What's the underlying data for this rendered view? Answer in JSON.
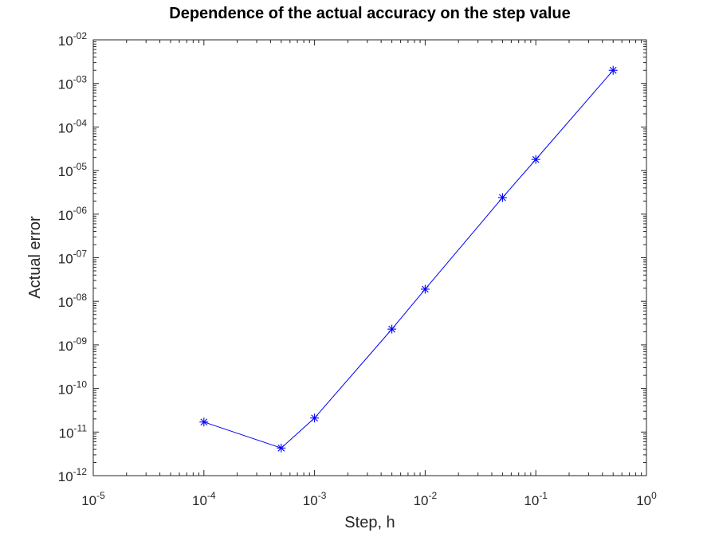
{
  "chart_data": {
    "type": "line",
    "title": "Dependence of the actual accuracy on the step value",
    "xlabel": "Step, h",
    "ylabel": "Actual error",
    "x_scale": "log",
    "y_scale": "log",
    "xlim": [
      1e-05,
      1
    ],
    "ylim": [
      1e-12,
      0.01
    ],
    "x_ticks": [
      {
        "base": "10",
        "exp": "-5",
        "value": 1e-05
      },
      {
        "base": "10",
        "exp": "-4",
        "value": 0.0001
      },
      {
        "base": "10",
        "exp": "-3",
        "value": 0.001
      },
      {
        "base": "10",
        "exp": "-2",
        "value": 0.01
      },
      {
        "base": "10",
        "exp": "-1",
        "value": 0.1
      },
      {
        "base": "10",
        "exp": "0",
        "value": 1
      }
    ],
    "y_ticks": [
      {
        "base": "10",
        "exp": "-12",
        "value": 1e-12
      },
      {
        "base": "10",
        "exp": "-11",
        "value": 1e-11
      },
      {
        "base": "10",
        "exp": "-10",
        "value": 1e-10
      },
      {
        "base": "10",
        "exp": "-09",
        "value": 1e-09
      },
      {
        "base": "10",
        "exp": "-08",
        "value": 1e-08
      },
      {
        "base": "10",
        "exp": "-07",
        "value": 1e-07
      },
      {
        "base": "10",
        "exp": "-06",
        "value": 1e-06
      },
      {
        "base": "10",
        "exp": "-05",
        "value": 1e-05
      },
      {
        "base": "10",
        "exp": "-04",
        "value": 0.0001
      },
      {
        "base": "10",
        "exp": "-03",
        "value": 0.001
      },
      {
        "base": "10",
        "exp": "-02",
        "value": 0.01
      }
    ],
    "grid": false,
    "series": [
      {
        "color": "#0000ff",
        "marker": "asterisk",
        "x": [
          0.0001,
          0.0005,
          0.001,
          0.005,
          0.01,
          0.05,
          0.1,
          0.5
        ],
        "y": [
          1.7e-11,
          4.3e-12,
          2.1e-11,
          2.3e-09,
          1.9e-08,
          2.4e-06,
          1.8e-05,
          0.002
        ]
      }
    ]
  }
}
